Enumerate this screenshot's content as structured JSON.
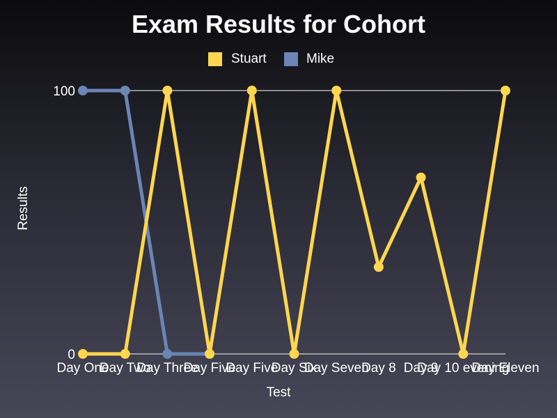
{
  "chart_data": {
    "type": "line",
    "title": "Exam Results for Cohort",
    "xlabel": "Test",
    "ylabel": "Results",
    "ylim": [
      0,
      100
    ],
    "yticks": [
      0,
      100
    ],
    "grid": true,
    "legend_position": "top-center",
    "categories": [
      "Day One",
      "Day Two",
      "Day Three",
      "Day Five",
      "Day Five",
      "Day Six",
      "Day Seven",
      "Day 8",
      "Day 9",
      "Day 10 evening",
      "Day Eleven"
    ],
    "series": [
      {
        "name": "Stuart",
        "color": "#ffd64f",
        "values": [
          0,
          0,
          100,
          0,
          100,
          0,
          100,
          33,
          67,
          0,
          100
        ]
      },
      {
        "name": "Mike",
        "color": "#6a85b6",
        "values": [
          100,
          100,
          0,
          0,
          null,
          null,
          null,
          null,
          null,
          null,
          null
        ]
      }
    ]
  }
}
